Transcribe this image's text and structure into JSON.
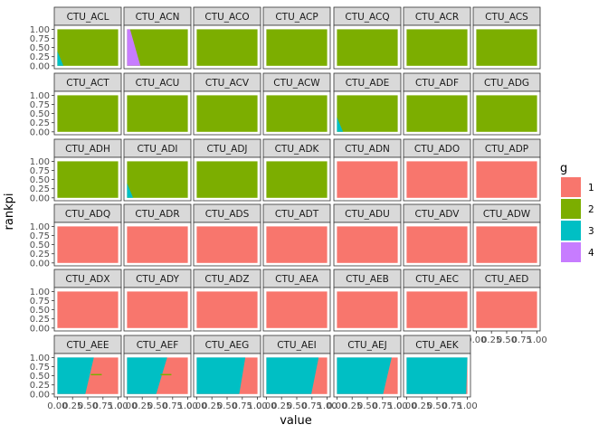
{
  "chart_data": {
    "type": "area",
    "facet_by": "panel",
    "xlabel": "value",
    "ylabel": "rankpi",
    "xlim": [
      0,
      1
    ],
    "ylim": [
      0,
      1
    ],
    "x_ticks": [
      "0.00",
      "0.25",
      "0.50",
      "0.75",
      "1.00"
    ],
    "y_ticks": [
      "0.00",
      "0.25",
      "0.50",
      "0.75",
      "1.00"
    ],
    "legend": {
      "title": "g",
      "position": "right",
      "entries": [
        {
          "label": "1",
          "color": "#F8766D"
        },
        {
          "label": "2",
          "color": "#7CAE00"
        },
        {
          "label": "3",
          "color": "#00BFC4"
        },
        {
          "label": "4",
          "color": "#C77CFF"
        }
      ]
    },
    "panels": [
      {
        "name": "CTU_ACL",
        "dominant": "2"
      },
      {
        "name": "CTU_ACN",
        "dominant": "2"
      },
      {
        "name": "CTU_ACO",
        "dominant": "2"
      },
      {
        "name": "CTU_ACP",
        "dominant": "2"
      },
      {
        "name": "CTU_ACQ",
        "dominant": "2"
      },
      {
        "name": "CTU_ACR",
        "dominant": "2"
      },
      {
        "name": "CTU_ACS",
        "dominant": "2"
      },
      {
        "name": "CTU_ACT",
        "dominant": "2"
      },
      {
        "name": "CTU_ACU",
        "dominant": "2"
      },
      {
        "name": "CTU_ACV",
        "dominant": "2"
      },
      {
        "name": "CTU_ACW",
        "dominant": "2"
      },
      {
        "name": "CTU_ADE",
        "dominant": "2"
      },
      {
        "name": "CTU_ADF",
        "dominant": "2"
      },
      {
        "name": "CTU_ADG",
        "dominant": "2"
      },
      {
        "name": "CTU_ADH",
        "dominant": "2"
      },
      {
        "name": "CTU_ADI",
        "dominant": "2"
      },
      {
        "name": "CTU_ADJ",
        "dominant": "2"
      },
      {
        "name": "CTU_ADK",
        "dominant": "2"
      },
      {
        "name": "CTU_ADN",
        "dominant": "1"
      },
      {
        "name": "CTU_ADO",
        "dominant": "1"
      },
      {
        "name": "CTU_ADP",
        "dominant": "1"
      },
      {
        "name": "CTU_ADQ",
        "dominant": "1"
      },
      {
        "name": "CTU_ADR",
        "dominant": "1"
      },
      {
        "name": "CTU_ADS",
        "dominant": "1"
      },
      {
        "name": "CTU_ADT",
        "dominant": "1"
      },
      {
        "name": "CTU_ADU",
        "dominant": "1"
      },
      {
        "name": "CTU_ADV",
        "dominant": "1"
      },
      {
        "name": "CTU_ADW",
        "dominant": "1"
      },
      {
        "name": "CTU_ADX",
        "dominant": "1"
      },
      {
        "name": "CTU_ADY",
        "dominant": "1"
      },
      {
        "name": "CTU_ADZ",
        "dominant": "1"
      },
      {
        "name": "CTU_AEA",
        "dominant": "1"
      },
      {
        "name": "CTU_AEB",
        "dominant": "1"
      },
      {
        "name": "CTU_AEC",
        "dominant": "1"
      },
      {
        "name": "CTU_AED",
        "dominant": "1"
      },
      {
        "name": "CTU_AEE",
        "dominant": "3"
      },
      {
        "name": "CTU_AEF",
        "dominant": "3"
      },
      {
        "name": "CTU_AEG",
        "dominant": "3"
      },
      {
        "name": "CTU_AEI",
        "dominant": "3"
      },
      {
        "name": "CTU_AEJ",
        "dominant": "3"
      },
      {
        "name": "CTU_AEK",
        "dominant": "3"
      }
    ]
  }
}
